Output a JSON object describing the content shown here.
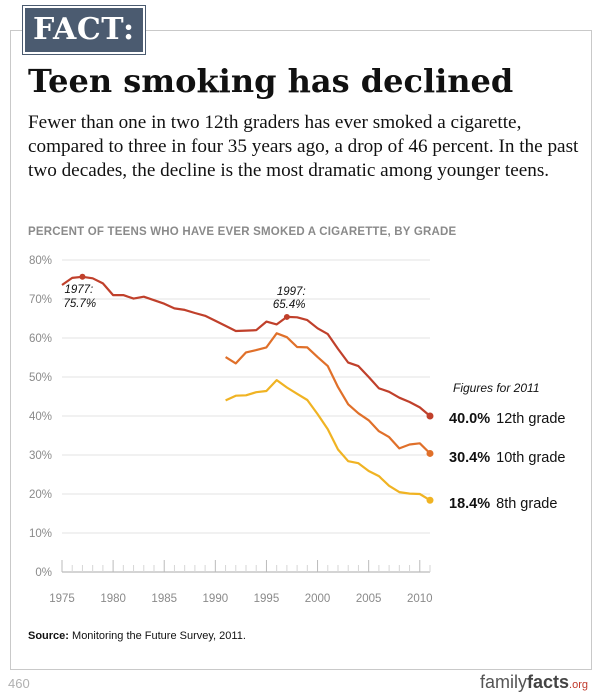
{
  "badge": "FACT:",
  "headline": "Teen smoking has declined",
  "deck": "Fewer than one in two 12th graders has ever smoked a cigarette, compared to three in four 35 years ago, a drop of 46 percent. In the past two decades, the decline is the most dramatic among younger teens.",
  "source_label": "Source:",
  "source_text": " Monitoring the Future Survey, 2011.",
  "page_number": "460",
  "logo": {
    "part1": "family",
    "part2": "facts",
    "part3": ".org"
  },
  "colors": {
    "grade12": "#c0402b",
    "grade10": "#e0702a",
    "grade8": "#f0b323",
    "axis": "#aaaaaa",
    "grid": "#e3e3e3",
    "text": "#111111",
    "muted": "#8a8a8a"
  },
  "chart_data": {
    "type": "line",
    "title": "PERCENT OF TEENS WHO HAVE EVER SMOKED A CIGARETTE, BY GRADE",
    "xlim": [
      1975,
      2011
    ],
    "ylim": [
      0,
      80
    ],
    "x_ticks": [
      1975,
      1980,
      1985,
      1990,
      1995,
      2000,
      2005,
      2010
    ],
    "y_ticks": [
      0,
      10,
      20,
      30,
      40,
      50,
      60,
      70,
      80
    ],
    "y_tick_labels": [
      "0%",
      "10%",
      "20%",
      "30%",
      "40%",
      "50%",
      "60%",
      "70%",
      "80%"
    ],
    "grid": true,
    "legend_heading": "Figures for 2011",
    "series": [
      {
        "key": "grade12",
        "name": "12th grade",
        "end_label": "40.0%",
        "x": [
          1975,
          1976,
          1977,
          1978,
          1979,
          1980,
          1981,
          1982,
          1983,
          1984,
          1985,
          1986,
          1987,
          1988,
          1989,
          1990,
          1991,
          1992,
          1993,
          1994,
          1995,
          1996,
          1997,
          1998,
          1999,
          2000,
          2001,
          2002,
          2003,
          2004,
          2005,
          2006,
          2007,
          2008,
          2009,
          2010,
          2011
        ],
        "y": [
          73.6,
          75.4,
          75.7,
          75.3,
          74.0,
          71.0,
          71.0,
          70.1,
          70.6,
          69.7,
          68.8,
          67.6,
          67.2,
          66.4,
          65.7,
          64.4,
          63.1,
          61.8,
          61.9,
          62.0,
          64.2,
          63.5,
          65.4,
          65.3,
          64.6,
          62.5,
          61.0,
          57.2,
          53.7,
          52.8,
          50.0,
          47.1,
          46.2,
          44.7,
          43.6,
          42.2,
          40.0
        ]
      },
      {
        "key": "grade10",
        "name": "10th grade",
        "end_label": "30.4%",
        "x": [
          1991,
          1992,
          1993,
          1994,
          1995,
          1996,
          1997,
          1998,
          1999,
          2000,
          2001,
          2002,
          2003,
          2004,
          2005,
          2006,
          2007,
          2008,
          2009,
          2010,
          2011
        ],
        "y": [
          55.1,
          53.5,
          56.3,
          56.9,
          57.6,
          61.2,
          60.2,
          57.7,
          57.6,
          55.1,
          52.8,
          47.4,
          43.0,
          40.7,
          38.9,
          36.1,
          34.6,
          31.7,
          32.7,
          33.0,
          30.4
        ]
      },
      {
        "key": "grade8",
        "name": "8th grade",
        "end_label": "18.4%",
        "x": [
          1991,
          1992,
          1993,
          1994,
          1995,
          1996,
          1997,
          1998,
          1999,
          2000,
          2001,
          2002,
          2003,
          2004,
          2005,
          2006,
          2007,
          2008,
          2009,
          2010,
          2011
        ],
        "y": [
          44.0,
          45.2,
          45.3,
          46.1,
          46.4,
          49.2,
          47.3,
          45.7,
          44.1,
          40.5,
          36.6,
          31.4,
          28.4,
          27.9,
          25.9,
          24.6,
          22.1,
          20.5,
          20.1,
          20.0,
          18.4
        ]
      }
    ],
    "annotations": [
      {
        "text_year": "1977:",
        "text_value": "75.7%",
        "x": 1977,
        "y": 75.7,
        "series": "grade12"
      },
      {
        "text_year": "1997:",
        "text_value": "65.4%",
        "x": 1997,
        "y": 65.4,
        "series": "grade12"
      }
    ]
  }
}
